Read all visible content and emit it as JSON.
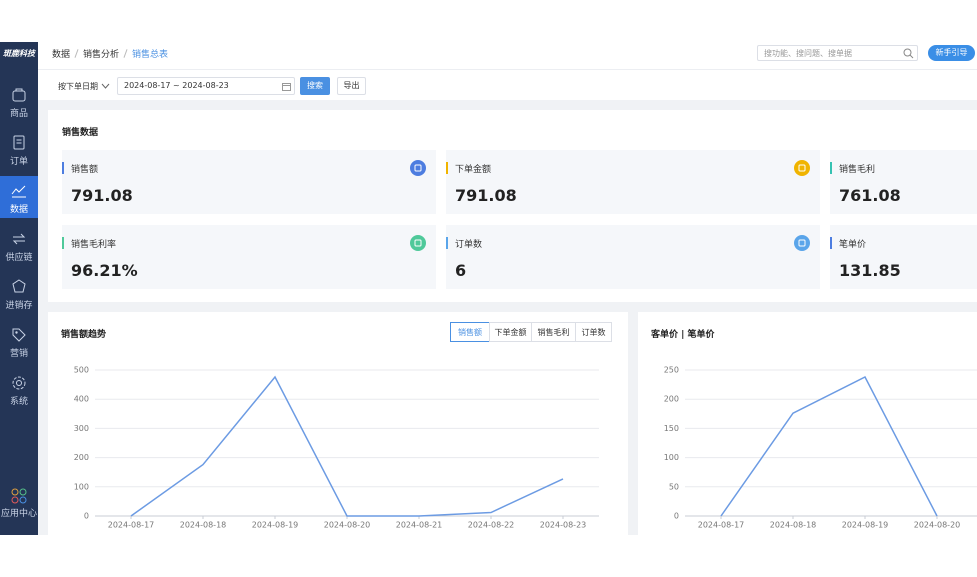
{
  "sidebar": {
    "logo": "斑鹿科技",
    "items": [
      "商品",
      "订单",
      "数据",
      "供应链",
      "进销存",
      "营销",
      "系统"
    ],
    "active_item": 2,
    "app_center": "应用中心"
  },
  "header": {
    "breadcrumb": [
      "数据",
      "销售分析",
      "销售总表"
    ],
    "search_placeholder": "搜功能、搜问题、搜单据",
    "guide_button": "新手引导"
  },
  "filter": {
    "date_type": "按下单日期",
    "date_range": "2024-08-17 ~ 2024-08-23",
    "search_button": "搜索",
    "export_button": "导出"
  },
  "sales_data": {
    "title": "销售数据",
    "stats": [
      {
        "label": "销售额",
        "value": "791.08",
        "color": "#4d7de0"
      },
      {
        "label": "下单金额",
        "value": "791.08",
        "color": "#f0b400"
      },
      {
        "label": "销售毛利",
        "value": "761.08",
        "color": "#35c2b2"
      },
      {
        "label": "销售毛利率",
        "value": "96.21%",
        "color": "#4fc99a"
      },
      {
        "label": "订单数",
        "value": "6",
        "color": "#5aa5ea"
      },
      {
        "label": "笔单价",
        "value": "131.85",
        "color": "#4d7de0"
      }
    ]
  },
  "charts": [
    {
      "type": "line",
      "title": "销售额趋势",
      "tabs": [
        "销售额",
        "下单金额",
        "销售毛利",
        "订单数"
      ],
      "active_tab": 0,
      "categories": [
        "2024-08-17",
        "2024-08-18",
        "2024-08-19",
        "2024-08-20",
        "2024-08-21",
        "2024-08-22",
        "2024-08-23"
      ],
      "values": [
        0,
        176,
        476,
        0,
        0,
        12,
        127
      ],
      "color": "#6c9be3",
      "ylim": [
        0,
        500
      ],
      "yticks": [
        0,
        100,
        200,
        300,
        400,
        500
      ],
      "grid": true
    },
    {
      "type": "line",
      "title": "客单价 | 笔单价",
      "categories": [
        "2024-08-17",
        "2024-08-18",
        "2024-08-19",
        "2024-08-20"
      ],
      "values": [
        0,
        176,
        238,
        0
      ],
      "color": "#6c9be3",
      "ylim": [
        0,
        250
      ],
      "yticks": [
        0,
        50,
        100,
        150,
        200,
        250
      ],
      "grid": true
    }
  ]
}
